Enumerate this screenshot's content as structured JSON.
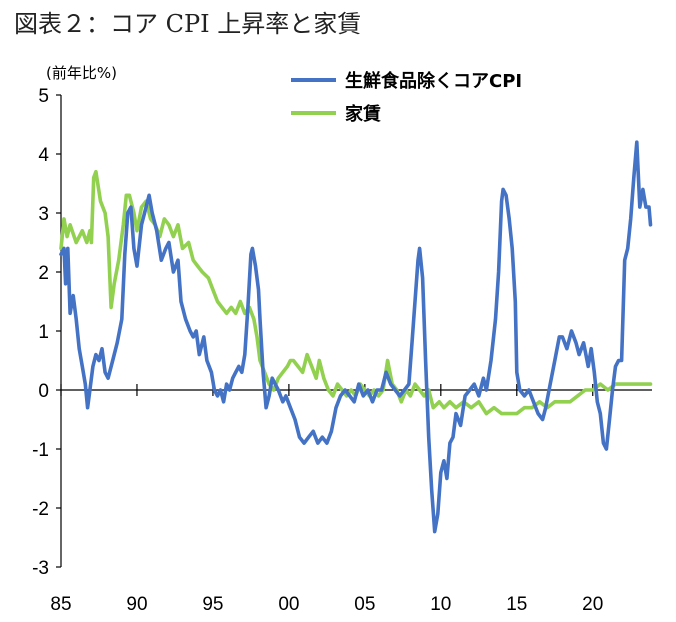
{
  "page": {
    "title": "図表２：コア CPI 上昇率と家賃"
  },
  "chart_data": {
    "type": "line",
    "title": "図表２：コア CPI 上昇率と家賃",
    "unit_label": "(前年比%)",
    "ylim": [
      -3,
      5
    ],
    "xlim": [
      1985,
      2023.9
    ],
    "y_ticks": [
      5,
      4,
      3,
      2,
      1,
      0,
      -1,
      -2,
      -3
    ],
    "x_ticks": [
      {
        "value": 1985,
        "label": "85"
      },
      {
        "value": 1990,
        "label": "90"
      },
      {
        "value": 1995,
        "label": "95"
      },
      {
        "value": 2000,
        "label": "00"
      },
      {
        "value": 2005,
        "label": "05"
      },
      {
        "value": 2010,
        "label": "10"
      },
      {
        "value": 2015,
        "label": "15"
      },
      {
        "value": 2020,
        "label": "20"
      }
    ],
    "legend_position": "top-right",
    "series": [
      {
        "name": "生鮮食品除くコアCPI",
        "color": "#4472C4",
        "points": [
          [
            1985.0,
            2.3
          ],
          [
            1985.2,
            2.4
          ],
          [
            1985.3,
            1.8
          ],
          [
            1985.45,
            2.4
          ],
          [
            1985.6,
            1.3
          ],
          [
            1985.8,
            1.6
          ],
          [
            1986.0,
            1.2
          ],
          [
            1986.2,
            0.7
          ],
          [
            1986.4,
            0.4
          ],
          [
            1986.6,
            0.1
          ],
          [
            1986.75,
            -0.3
          ],
          [
            1986.9,
            0.0
          ],
          [
            1987.1,
            0.4
          ],
          [
            1987.3,
            0.6
          ],
          [
            1987.5,
            0.5
          ],
          [
            1987.7,
            0.7
          ],
          [
            1987.9,
            0.3
          ],
          [
            1988.1,
            0.2
          ],
          [
            1988.4,
            0.5
          ],
          [
            1988.7,
            0.8
          ],
          [
            1989.0,
            1.2
          ],
          [
            1989.2,
            2.3
          ],
          [
            1989.4,
            3.0
          ],
          [
            1989.6,
            3.1
          ],
          [
            1989.8,
            2.4
          ],
          [
            1990.0,
            2.1
          ],
          [
            1990.3,
            2.8
          ],
          [
            1990.6,
            3.1
          ],
          [
            1990.8,
            3.3
          ],
          [
            1991.0,
            3.0
          ],
          [
            1991.3,
            2.7
          ],
          [
            1991.6,
            2.2
          ],
          [
            1991.9,
            2.4
          ],
          [
            1992.1,
            2.5
          ],
          [
            1992.4,
            2.0
          ],
          [
            1992.7,
            2.2
          ],
          [
            1992.9,
            1.5
          ],
          [
            1993.2,
            1.2
          ],
          [
            1993.5,
            1.0
          ],
          [
            1993.7,
            0.9
          ],
          [
            1993.9,
            1.0
          ],
          [
            1994.1,
            0.6
          ],
          [
            1994.4,
            0.9
          ],
          [
            1994.6,
            0.5
          ],
          [
            1994.9,
            0.3
          ],
          [
            1995.1,
            0.0
          ],
          [
            1995.3,
            -0.1
          ],
          [
            1995.5,
            0.0
          ],
          [
            1995.7,
            -0.2
          ],
          [
            1995.9,
            0.1
          ],
          [
            1996.1,
            0.0
          ],
          [
            1996.3,
            0.2
          ],
          [
            1996.5,
            0.3
          ],
          [
            1996.7,
            0.4
          ],
          [
            1996.9,
            0.3
          ],
          [
            1997.1,
            0.6
          ],
          [
            1997.3,
            1.4
          ],
          [
            1997.5,
            2.3
          ],
          [
            1997.6,
            2.4
          ],
          [
            1997.8,
            2.1
          ],
          [
            1998.0,
            1.7
          ],
          [
            1998.1,
            1.2
          ],
          [
            1998.3,
            0.3
          ],
          [
            1998.5,
            -0.3
          ],
          [
            1998.7,
            -0.1
          ],
          [
            1998.9,
            0.2
          ],
          [
            1999.1,
            0.1
          ],
          [
            1999.3,
            0.0
          ],
          [
            1999.6,
            -0.2
          ],
          [
            1999.8,
            -0.1
          ],
          [
            2000.1,
            -0.3
          ],
          [
            2000.4,
            -0.5
          ],
          [
            2000.7,
            -0.8
          ],
          [
            2001.0,
            -0.9
          ],
          [
            2001.3,
            -0.8
          ],
          [
            2001.6,
            -0.7
          ],
          [
            2001.9,
            -0.9
          ],
          [
            2002.2,
            -0.8
          ],
          [
            2002.5,
            -0.9
          ],
          [
            2002.8,
            -0.7
          ],
          [
            2003.1,
            -0.3
          ],
          [
            2003.4,
            -0.1
          ],
          [
            2003.7,
            0.0
          ],
          [
            2004.0,
            -0.1
          ],
          [
            2004.3,
            -0.2
          ],
          [
            2004.6,
            0.1
          ],
          [
            2004.9,
            -0.1
          ],
          [
            2005.2,
            0.0
          ],
          [
            2005.5,
            -0.2
          ],
          [
            2005.8,
            0.0
          ],
          [
            2006.1,
            0.0
          ],
          [
            2006.4,
            0.3
          ],
          [
            2006.7,
            0.1
          ],
          [
            2007.0,
            0.0
          ],
          [
            2007.3,
            -0.1
          ],
          [
            2007.6,
            0.0
          ],
          [
            2007.9,
            0.1
          ],
          [
            2008.1,
            0.8
          ],
          [
            2008.3,
            1.5
          ],
          [
            2008.5,
            2.2
          ],
          [
            2008.6,
            2.4
          ],
          [
            2008.8,
            1.9
          ],
          [
            2009.0,
            0.5
          ],
          [
            2009.2,
            -0.8
          ],
          [
            2009.4,
            -1.7
          ],
          [
            2009.6,
            -2.4
          ],
          [
            2009.8,
            -2.1
          ],
          [
            2010.0,
            -1.4
          ],
          [
            2010.2,
            -1.2
          ],
          [
            2010.4,
            -1.5
          ],
          [
            2010.6,
            -0.9
          ],
          [
            2010.8,
            -0.8
          ],
          [
            2011.0,
            -0.4
          ],
          [
            2011.3,
            -0.6
          ],
          [
            2011.6,
            -0.1
          ],
          [
            2011.9,
            0.0
          ],
          [
            2012.2,
            0.1
          ],
          [
            2012.5,
            -0.1
          ],
          [
            2012.8,
            0.2
          ],
          [
            2013.0,
            0.0
          ],
          [
            2013.3,
            0.5
          ],
          [
            2013.6,
            1.2
          ],
          [
            2013.8,
            2.0
          ],
          [
            2014.0,
            3.2
          ],
          [
            2014.1,
            3.4
          ],
          [
            2014.3,
            3.3
          ],
          [
            2014.5,
            2.9
          ],
          [
            2014.7,
            2.4
          ],
          [
            2014.9,
            1.5
          ],
          [
            2015.0,
            0.3
          ],
          [
            2015.2,
            0.0
          ],
          [
            2015.5,
            -0.1
          ],
          [
            2015.8,
            0.0
          ],
          [
            2016.1,
            -0.2
          ],
          [
            2016.4,
            -0.4
          ],
          [
            2016.7,
            -0.5
          ],
          [
            2016.9,
            -0.3
          ],
          [
            2017.2,
            0.1
          ],
          [
            2017.5,
            0.5
          ],
          [
            2017.8,
            0.9
          ],
          [
            2018.0,
            0.9
          ],
          [
            2018.3,
            0.7
          ],
          [
            2018.6,
            1.0
          ],
          [
            2018.9,
            0.8
          ],
          [
            2019.1,
            0.6
          ],
          [
            2019.4,
            0.8
          ],
          [
            2019.7,
            0.4
          ],
          [
            2019.9,
            0.7
          ],
          [
            2020.1,
            0.3
          ],
          [
            2020.3,
            -0.2
          ],
          [
            2020.5,
            -0.4
          ],
          [
            2020.7,
            -0.9
          ],
          [
            2020.9,
            -1.0
          ],
          [
            2021.1,
            -0.5
          ],
          [
            2021.3,
            0.0
          ],
          [
            2021.5,
            0.4
          ],
          [
            2021.7,
            0.5
          ],
          [
            2021.9,
            0.5
          ],
          [
            2022.1,
            2.2
          ],
          [
            2022.3,
            2.4
          ],
          [
            2022.5,
            2.9
          ],
          [
            2022.7,
            3.6
          ],
          [
            2022.9,
            4.2
          ],
          [
            2023.1,
            3.1
          ],
          [
            2023.3,
            3.4
          ],
          [
            2023.5,
            3.1
          ],
          [
            2023.7,
            3.1
          ],
          [
            2023.8,
            2.8
          ]
        ]
      },
      {
        "name": "家賃",
        "color": "#92D050",
        "points": [
          [
            1985.0,
            2.4
          ],
          [
            1985.2,
            2.9
          ],
          [
            1985.4,
            2.6
          ],
          [
            1985.6,
            2.8
          ],
          [
            1986.0,
            2.5
          ],
          [
            1986.4,
            2.7
          ],
          [
            1986.7,
            2.5
          ],
          [
            1986.9,
            2.7
          ],
          [
            1987.0,
            2.5
          ],
          [
            1987.15,
            3.6
          ],
          [
            1987.3,
            3.7
          ],
          [
            1987.6,
            3.2
          ],
          [
            1987.9,
            3.0
          ],
          [
            1988.1,
            2.6
          ],
          [
            1988.3,
            1.4
          ],
          [
            1988.5,
            1.8
          ],
          [
            1988.8,
            2.2
          ],
          [
            1989.1,
            2.8
          ],
          [
            1989.3,
            3.3
          ],
          [
            1989.5,
            3.3
          ],
          [
            1989.8,
            3.0
          ],
          [
            1990.0,
            2.7
          ],
          [
            1990.3,
            3.1
          ],
          [
            1990.6,
            3.2
          ],
          [
            1990.9,
            2.9
          ],
          [
            1991.2,
            2.8
          ],
          [
            1991.5,
            2.6
          ],
          [
            1991.8,
            2.9
          ],
          [
            1992.1,
            2.8
          ],
          [
            1992.4,
            2.6
          ],
          [
            1992.7,
            2.8
          ],
          [
            1993.0,
            2.4
          ],
          [
            1993.4,
            2.5
          ],
          [
            1993.7,
            2.2
          ],
          [
            1994.0,
            2.1
          ],
          [
            1994.3,
            2.0
          ],
          [
            1994.7,
            1.9
          ],
          [
            1995.0,
            1.7
          ],
          [
            1995.3,
            1.5
          ],
          [
            1995.6,
            1.4
          ],
          [
            1995.9,
            1.3
          ],
          [
            1996.2,
            1.4
          ],
          [
            1996.5,
            1.3
          ],
          [
            1996.8,
            1.5
          ],
          [
            1997.1,
            1.3
          ],
          [
            1997.4,
            1.4
          ],
          [
            1997.7,
            1.2
          ],
          [
            1997.9,
            0.9
          ],
          [
            1998.1,
            0.5
          ],
          [
            1998.4,
            0.3
          ],
          [
            1998.7,
            0.1
          ],
          [
            1999.0,
            0.0
          ],
          [
            1999.3,
            0.2
          ],
          [
            1999.6,
            0.3
          ],
          [
            1999.9,
            0.4
          ],
          [
            2000.1,
            0.5
          ],
          [
            2000.3,
            0.5
          ],
          [
            2000.6,
            0.4
          ],
          [
            2000.9,
            0.3
          ],
          [
            2001.2,
            0.6
          ],
          [
            2001.5,
            0.4
          ],
          [
            2001.8,
            0.2
          ],
          [
            2002.0,
            0.5
          ],
          [
            2002.3,
            0.2
          ],
          [
            2002.6,
            0.0
          ],
          [
            2002.9,
            -0.1
          ],
          [
            2003.2,
            0.1
          ],
          [
            2003.5,
            0.0
          ],
          [
            2003.8,
            -0.1
          ],
          [
            2004.1,
            0.0
          ],
          [
            2004.4,
            -0.1
          ],
          [
            2004.7,
            0.1
          ],
          [
            2005.0,
            0.0
          ],
          [
            2005.3,
            -0.1
          ],
          [
            2005.6,
            0.0
          ],
          [
            2005.9,
            -0.1
          ],
          [
            2006.2,
            0.0
          ],
          [
            2006.5,
            0.5
          ],
          [
            2006.8,
            0.1
          ],
          [
            2007.1,
            0.0
          ],
          [
            2007.4,
            -0.2
          ],
          [
            2007.7,
            0.0
          ],
          [
            2008.0,
            -0.1
          ],
          [
            2008.3,
            0.1
          ],
          [
            2008.6,
            0.0
          ],
          [
            2008.9,
            -0.1
          ],
          [
            2009.2,
            0.0
          ],
          [
            2009.5,
            -0.3
          ],
          [
            2009.9,
            -0.2
          ],
          [
            2010.2,
            -0.3
          ],
          [
            2010.6,
            -0.2
          ],
          [
            2011.0,
            -0.3
          ],
          [
            2011.5,
            -0.2
          ],
          [
            2012.0,
            -0.3
          ],
          [
            2012.5,
            -0.2
          ],
          [
            2013.0,
            -0.4
          ],
          [
            2013.5,
            -0.3
          ],
          [
            2014.0,
            -0.4
          ],
          [
            2014.5,
            -0.4
          ],
          [
            2015.0,
            -0.4
          ],
          [
            2015.5,
            -0.3
          ],
          [
            2016.0,
            -0.3
          ],
          [
            2016.5,
            -0.2
          ],
          [
            2017.0,
            -0.3
          ],
          [
            2017.5,
            -0.2
          ],
          [
            2018.0,
            -0.2
          ],
          [
            2018.5,
            -0.2
          ],
          [
            2019.0,
            -0.1
          ],
          [
            2019.5,
            0.0
          ],
          [
            2020.0,
            0.0
          ],
          [
            2020.5,
            0.1
          ],
          [
            2021.0,
            0.0
          ],
          [
            2021.5,
            0.1
          ],
          [
            2022.0,
            0.1
          ],
          [
            2022.5,
            0.1
          ],
          [
            2023.0,
            0.1
          ],
          [
            2023.5,
            0.1
          ],
          [
            2023.8,
            0.1
          ]
        ]
      }
    ]
  }
}
